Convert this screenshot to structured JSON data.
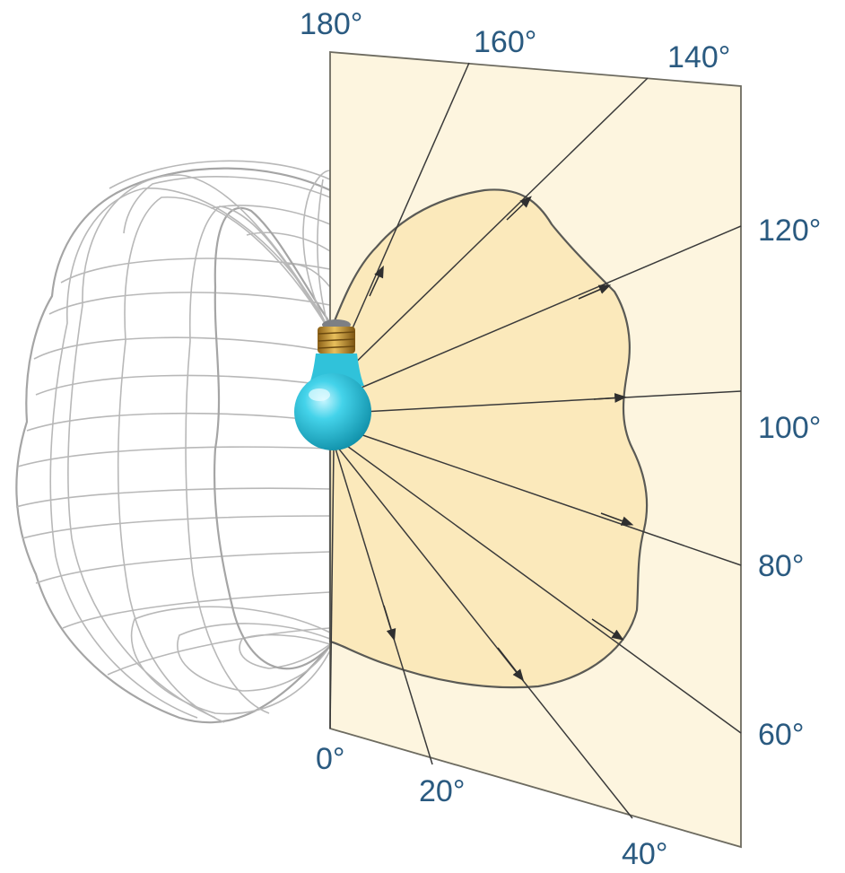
{
  "angle_labels": {
    "a0": "0°",
    "a20": "20°",
    "a40": "40°",
    "a60": "60°",
    "a80": "80°",
    "a100": "100°",
    "a120": "120°",
    "a140": "140°",
    "a160": "160°",
    "a180": "180°"
  },
  "colors": {
    "plane_fill": "#fdf5df",
    "plane_edge": "#6d6b60",
    "curve_fill": "#fbe9bb",
    "label_color": "#2a5a80",
    "bulb_color": "#2ec4dc",
    "base_color": "#c79a3a",
    "wireframe_color": "#b8b8b8"
  },
  "icons": {
    "light_source": "light-bulb-icon"
  }
}
